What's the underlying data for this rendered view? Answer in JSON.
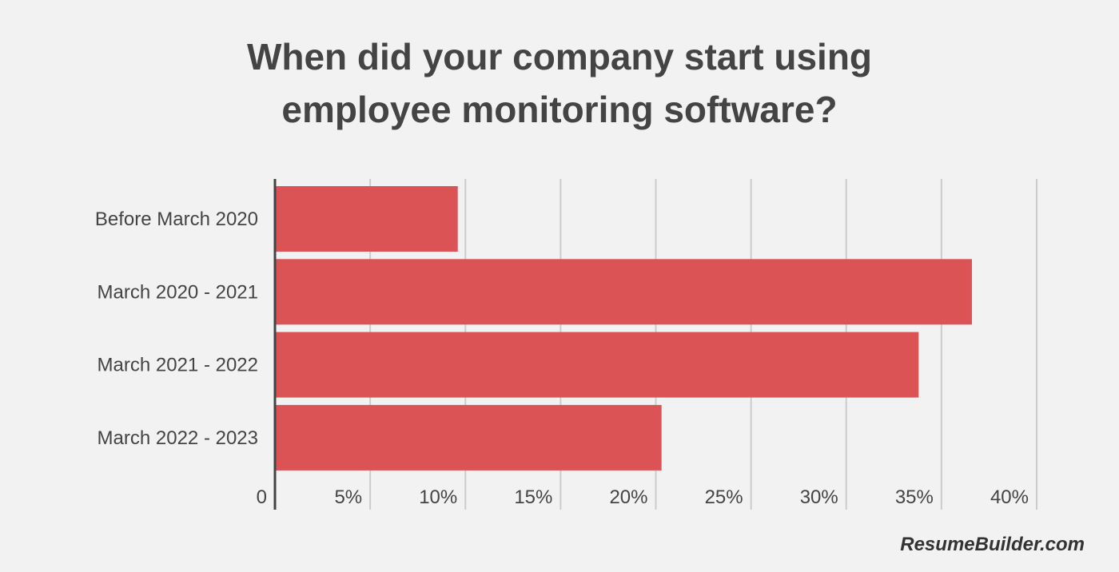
{
  "title": {
    "line1": "When did your company start using",
    "line2": "employee monitoring software?"
  },
  "credit": "ResumeBuilder.com",
  "colors": {
    "bar": "#dc5356",
    "grid": "#cccccc",
    "axis": "#444444",
    "text": "#444444"
  },
  "chart_data": {
    "type": "bar",
    "orientation": "horizontal",
    "title": "When did your company start using employee monitoring software?",
    "categories": [
      "Before March 2020",
      "March 2020 - 2021",
      "March 2021 - 2022",
      "March 2022 - 2023"
    ],
    "values": [
      9.6,
      36.6,
      33.8,
      20.3
    ],
    "unit": "%",
    "xlim": [
      0,
      40
    ],
    "xticks": [
      0,
      5,
      10,
      15,
      20,
      25,
      30,
      35,
      40
    ],
    "xtick_labels": [
      "0",
      "5%",
      "10%",
      "15%",
      "20%",
      "25%",
      "30%",
      "35%",
      "40%"
    ],
    "grid": true,
    "legend": "none"
  }
}
